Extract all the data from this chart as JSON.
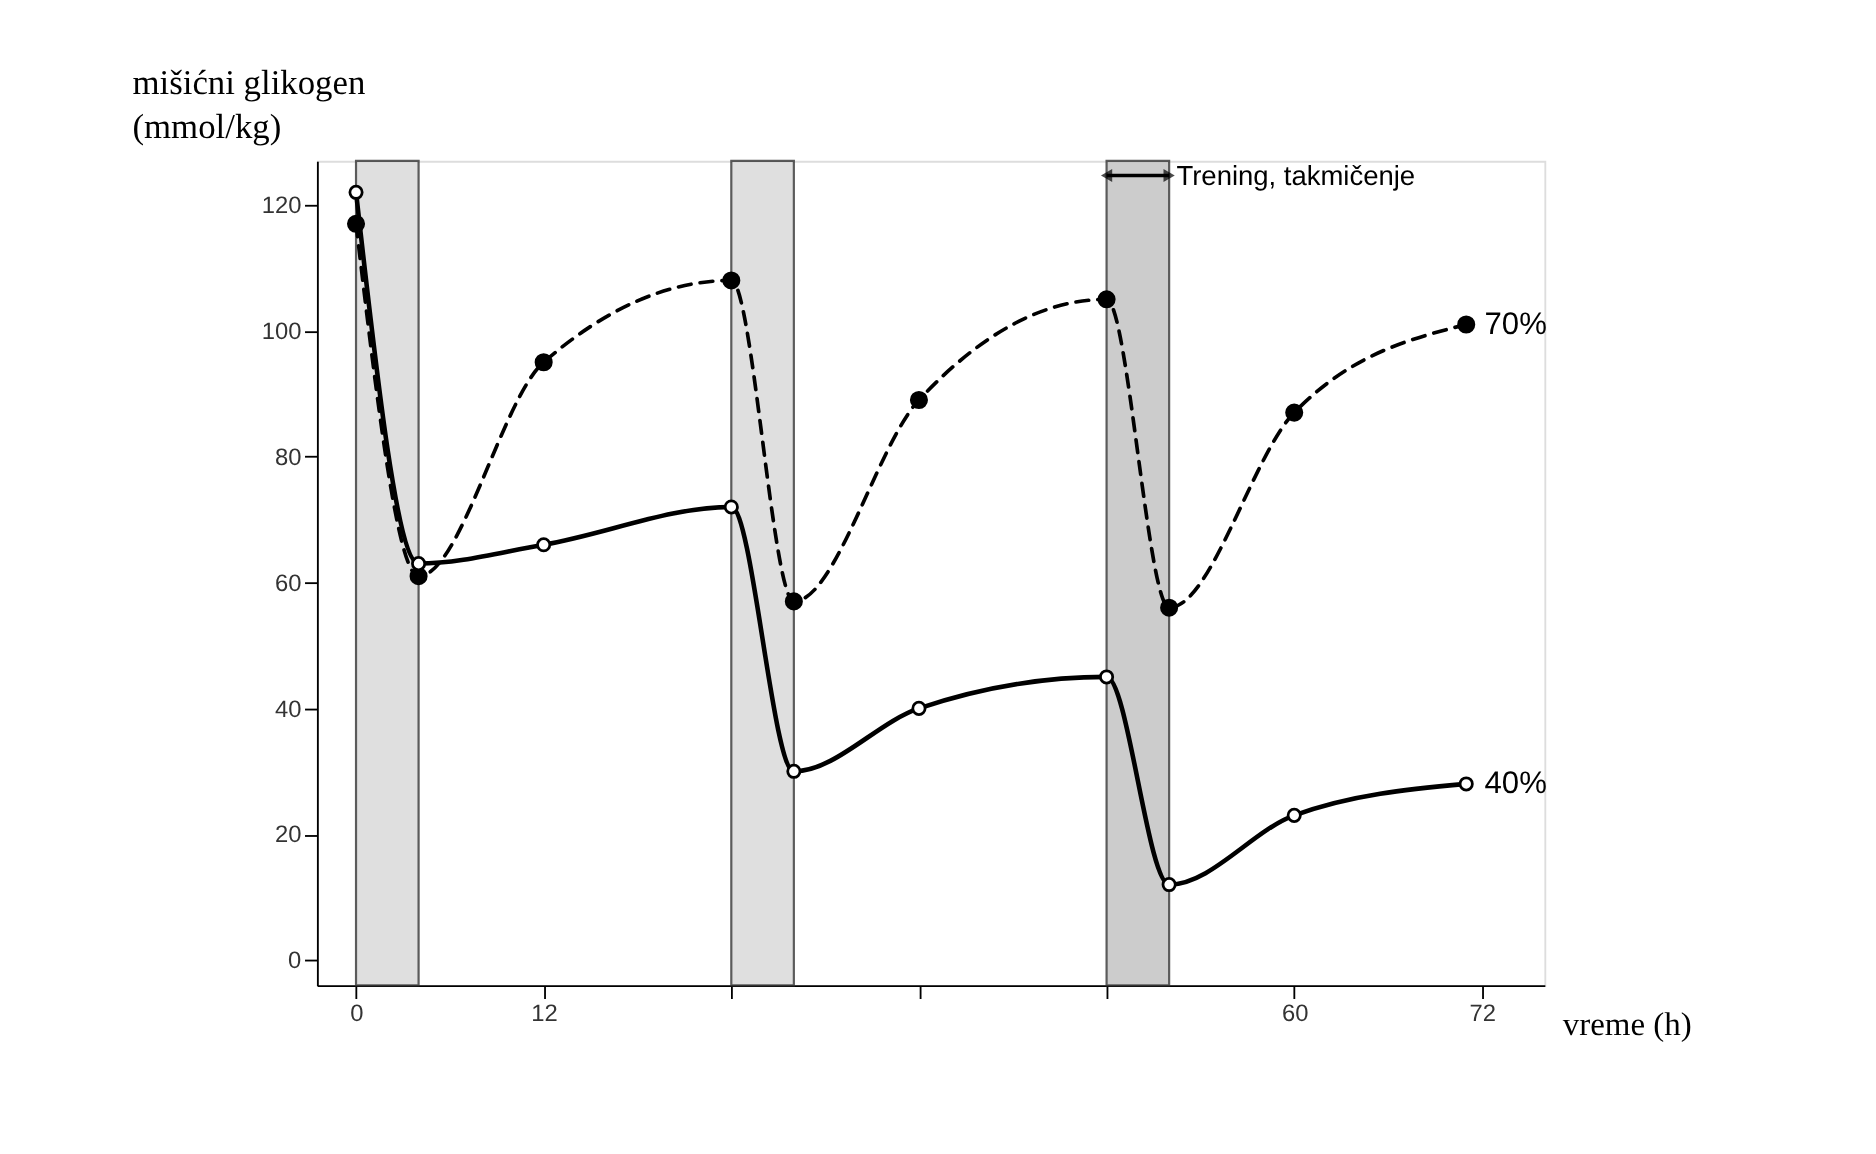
{
  "chart_data": {
    "type": "line",
    "ylabel": "mišićni glikogen\n(mmol/kg)",
    "xlabel": "vreme (h)",
    "series": [
      {
        "name": "70%",
        "color": "#000000",
        "line_style": "dashed",
        "marker": "circle",
        "x": [
          0,
          4,
          12,
          24,
          28,
          36,
          48,
          52,
          60,
          71
        ],
        "values": [
          117,
          61,
          95,
          108,
          57,
          89,
          105,
          56,
          87,
          101
        ]
      },
      {
        "name": "40%",
        "color": "#000000",
        "line_style": "solid",
        "marker": "circle",
        "x": [
          0,
          4,
          12,
          24,
          28,
          36,
          48,
          52,
          60,
          71
        ],
        "values": [
          122,
          63,
          66,
          72,
          30,
          40,
          45,
          12,
          23,
          28
        ]
      }
    ],
    "bands": [
      {
        "axis": "x",
        "from": 0,
        "to": 4,
        "color": "#d8d8d8"
      },
      {
        "axis": "x",
        "from": 24,
        "to": 28,
        "color": "#d8d8d8"
      },
      {
        "axis": "x",
        "from": 48,
        "to": 52,
        "color": "#c0c0c0",
        "label": "Trening, takmičenje"
      }
    ],
    "xlim": [
      -2.5,
      76
    ],
    "ylim": [
      -4,
      127
    ],
    "xticks": [
      0,
      12,
      {
        "value": 24,
        "label": null
      },
      {
        "value": 36,
        "label": null
      },
      {
        "value": 48,
        "label": null
      },
      60,
      72
    ],
    "yticks": [
      0,
      20,
      40,
      60,
      80,
      100,
      120
    ]
  }
}
